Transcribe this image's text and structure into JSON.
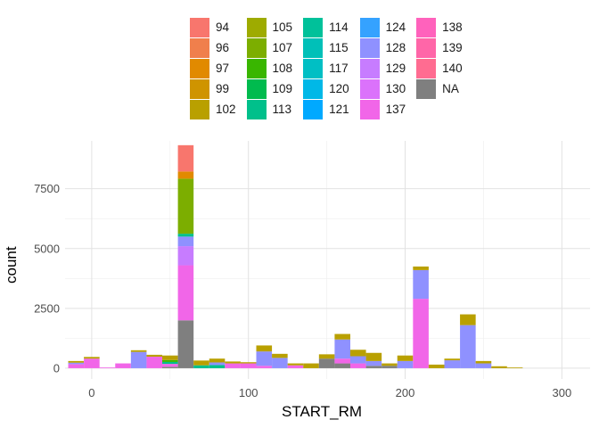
{
  "chart_data": {
    "type": "bar",
    "stacked": true,
    "xlabel": "START_RM",
    "ylabel": "count",
    "xlim": [
      -17,
      318
    ],
    "ylim": [
      -450,
      9500
    ],
    "x_ticks": [
      0,
      100,
      200,
      300
    ],
    "y_ticks": [
      0,
      2500,
      5000,
      7500
    ],
    "grid": true,
    "legend_position": "top",
    "legend": [
      {
        "label": "94",
        "color": "#F8766D"
      },
      {
        "label": "96",
        "color": "#F07F4C"
      },
      {
        "label": "97",
        "color": "#E18A00"
      },
      {
        "label": "99",
        "color": "#CF9400"
      },
      {
        "label": "102",
        "color": "#B9A000"
      },
      {
        "label": "105",
        "color": "#9EAB00"
      },
      {
        "label": "107",
        "color": "#7CAE00"
      },
      {
        "label": "108",
        "color": "#39B600"
      },
      {
        "label": "109",
        "color": "#00BB4E"
      },
      {
        "label": "113",
        "color": "#00C08B"
      },
      {
        "label": "114",
        "color": "#00C19A"
      },
      {
        "label": "115",
        "color": "#00C0B8"
      },
      {
        "label": "117",
        "color": "#00BFC4"
      },
      {
        "label": "120",
        "color": "#00B8E7"
      },
      {
        "label": "121",
        "color": "#00A9FF"
      },
      {
        "label": "124",
        "color": "#35A2FF"
      },
      {
        "label": "128",
        "color": "#8F91FF"
      },
      {
        "label": "129",
        "color": "#C77CFF"
      },
      {
        "label": "130",
        "color": "#DB72FB"
      },
      {
        "label": "137",
        "color": "#F166E8"
      },
      {
        "label": "138",
        "color": "#FF62BC"
      },
      {
        "label": "139",
        "color": "#FF66A8"
      },
      {
        "label": "140",
        "color": "#FF6C91"
      },
      {
        "label": "NA",
        "color": "#7F7F7F"
      }
    ],
    "bin_width": 10,
    "bins": [
      {
        "x": -10,
        "stack": [
          {
            "g": "137",
            "v": 170
          },
          {
            "g": "128",
            "v": 60
          },
          {
            "g": "102",
            "v": 70
          }
        ]
      },
      {
        "x": 0,
        "stack": [
          {
            "g": "137",
            "v": 400
          },
          {
            "g": "102",
            "v": 70
          }
        ]
      },
      {
        "x": 10,
        "stack": [
          {
            "g": "137",
            "v": 30
          }
        ]
      },
      {
        "x": 20,
        "stack": [
          {
            "g": "137",
            "v": 200
          }
        ]
      },
      {
        "x": 30,
        "stack": [
          {
            "g": "128",
            "v": 680
          },
          {
            "g": "102",
            "v": 70
          }
        ]
      },
      {
        "x": 40,
        "stack": [
          {
            "g": "137",
            "v": 480
          },
          {
            "g": "102",
            "v": 80
          }
        ]
      },
      {
        "x": 50,
        "stack": [
          {
            "g": "NA",
            "v": 60
          },
          {
            "g": "137",
            "v": 120
          },
          {
            "g": "113",
            "v": 80
          },
          {
            "g": "108",
            "v": 80
          },
          {
            "g": "102",
            "v": 190
          }
        ]
      },
      {
        "x": 60,
        "stack": [
          {
            "g": "NA",
            "v": 2000
          },
          {
            "g": "137",
            "v": 2300
          },
          {
            "g": "129",
            "v": 800
          },
          {
            "g": "128",
            "v": 400
          },
          {
            "g": "113",
            "v": 120
          },
          {
            "g": "107",
            "v": 2300
          },
          {
            "g": "97",
            "v": 300
          },
          {
            "g": "94",
            "v": 1100
          }
        ]
      },
      {
        "x": 70,
        "stack": [
          {
            "g": "113",
            "v": 120
          },
          {
            "g": "102",
            "v": 200
          }
        ]
      },
      {
        "x": 80,
        "stack": [
          {
            "g": "113",
            "v": 130
          },
          {
            "g": "128",
            "v": 110
          },
          {
            "g": "102",
            "v": 160
          }
        ]
      },
      {
        "x": 90,
        "stack": [
          {
            "g": "137",
            "v": 200
          },
          {
            "g": "102",
            "v": 80
          }
        ]
      },
      {
        "x": 100,
        "stack": [
          {
            "g": "137",
            "v": 200
          },
          {
            "g": "102",
            "v": 50
          }
        ]
      },
      {
        "x": 110,
        "stack": [
          {
            "g": "137",
            "v": 100
          },
          {
            "g": "128",
            "v": 600
          },
          {
            "g": "102",
            "v": 250
          }
        ]
      },
      {
        "x": 120,
        "stack": [
          {
            "g": "128",
            "v": 430
          },
          {
            "g": "102",
            "v": 170
          }
        ]
      },
      {
        "x": 130,
        "stack": [
          {
            "g": "137",
            "v": 120
          },
          {
            "g": "102",
            "v": 80
          }
        ]
      },
      {
        "x": 140,
        "stack": [
          {
            "g": "102",
            "v": 200
          }
        ]
      },
      {
        "x": 150,
        "stack": [
          {
            "g": "NA",
            "v": 400
          },
          {
            "g": "102",
            "v": 180
          }
        ]
      },
      {
        "x": 160,
        "stack": [
          {
            "g": "NA",
            "v": 200
          },
          {
            "g": "137",
            "v": 200
          },
          {
            "g": "128",
            "v": 800
          },
          {
            "g": "102",
            "v": 230
          }
        ]
      },
      {
        "x": 170,
        "stack": [
          {
            "g": "137",
            "v": 200
          },
          {
            "g": "128",
            "v": 300
          },
          {
            "g": "102",
            "v": 270
          }
        ]
      },
      {
        "x": 180,
        "stack": [
          {
            "g": "NA",
            "v": 100
          },
          {
            "g": "128",
            "v": 200
          },
          {
            "g": "102",
            "v": 340
          }
        ]
      },
      {
        "x": 190,
        "stack": [
          {
            "g": "NA",
            "v": 100
          },
          {
            "g": "102",
            "v": 100
          }
        ]
      },
      {
        "x": 200,
        "stack": [
          {
            "g": "128",
            "v": 300
          },
          {
            "g": "102",
            "v": 230
          }
        ]
      },
      {
        "x": 210,
        "stack": [
          {
            "g": "137",
            "v": 2900
          },
          {
            "g": "128",
            "v": 1200
          },
          {
            "g": "102",
            "v": 150
          }
        ]
      },
      {
        "x": 220,
        "stack": [
          {
            "g": "102",
            "v": 150
          }
        ]
      },
      {
        "x": 230,
        "stack": [
          {
            "g": "128",
            "v": 330
          },
          {
            "g": "102",
            "v": 70
          }
        ]
      },
      {
        "x": 240,
        "stack": [
          {
            "g": "128",
            "v": 1800
          },
          {
            "g": "102",
            "v": 450
          }
        ]
      },
      {
        "x": 250,
        "stack": [
          {
            "g": "128",
            "v": 200
          },
          {
            "g": "102",
            "v": 100
          }
        ]
      },
      {
        "x": 260,
        "stack": [
          {
            "g": "102",
            "v": 80
          }
        ]
      },
      {
        "x": 270,
        "stack": [
          {
            "g": "102",
            "v": 30
          }
        ]
      }
    ]
  }
}
